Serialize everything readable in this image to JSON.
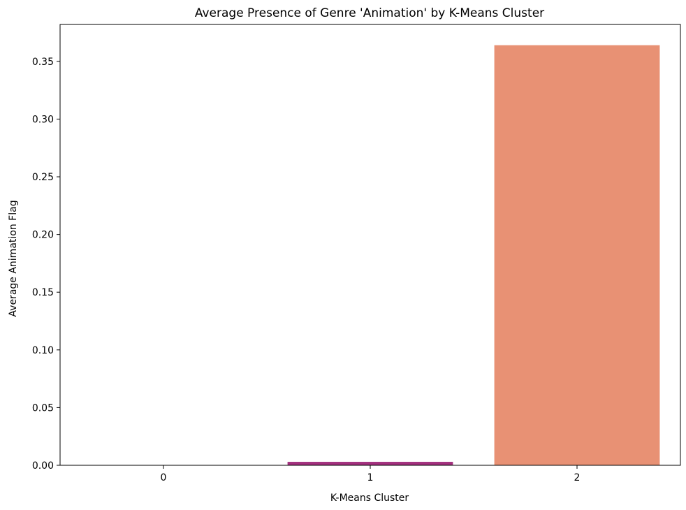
{
  "chart_data": {
    "type": "bar",
    "title": "Average Presence of Genre 'Animation' by K-Means Cluster",
    "xlabel": "K-Means Cluster",
    "ylabel": "Average Animation Flag",
    "categories": [
      "0",
      "1",
      "2"
    ],
    "values": [
      0.0,
      0.003,
      0.364
    ],
    "ylim": [
      0,
      0.382
    ],
    "yticks": [
      "0.00",
      "0.05",
      "0.10",
      "0.15",
      "0.20",
      "0.25",
      "0.30",
      "0.35"
    ],
    "bar_colors": [
      "#3b0f70",
      "#a3307e",
      "#e89174"
    ],
    "grid": false,
    "legend": "none"
  }
}
